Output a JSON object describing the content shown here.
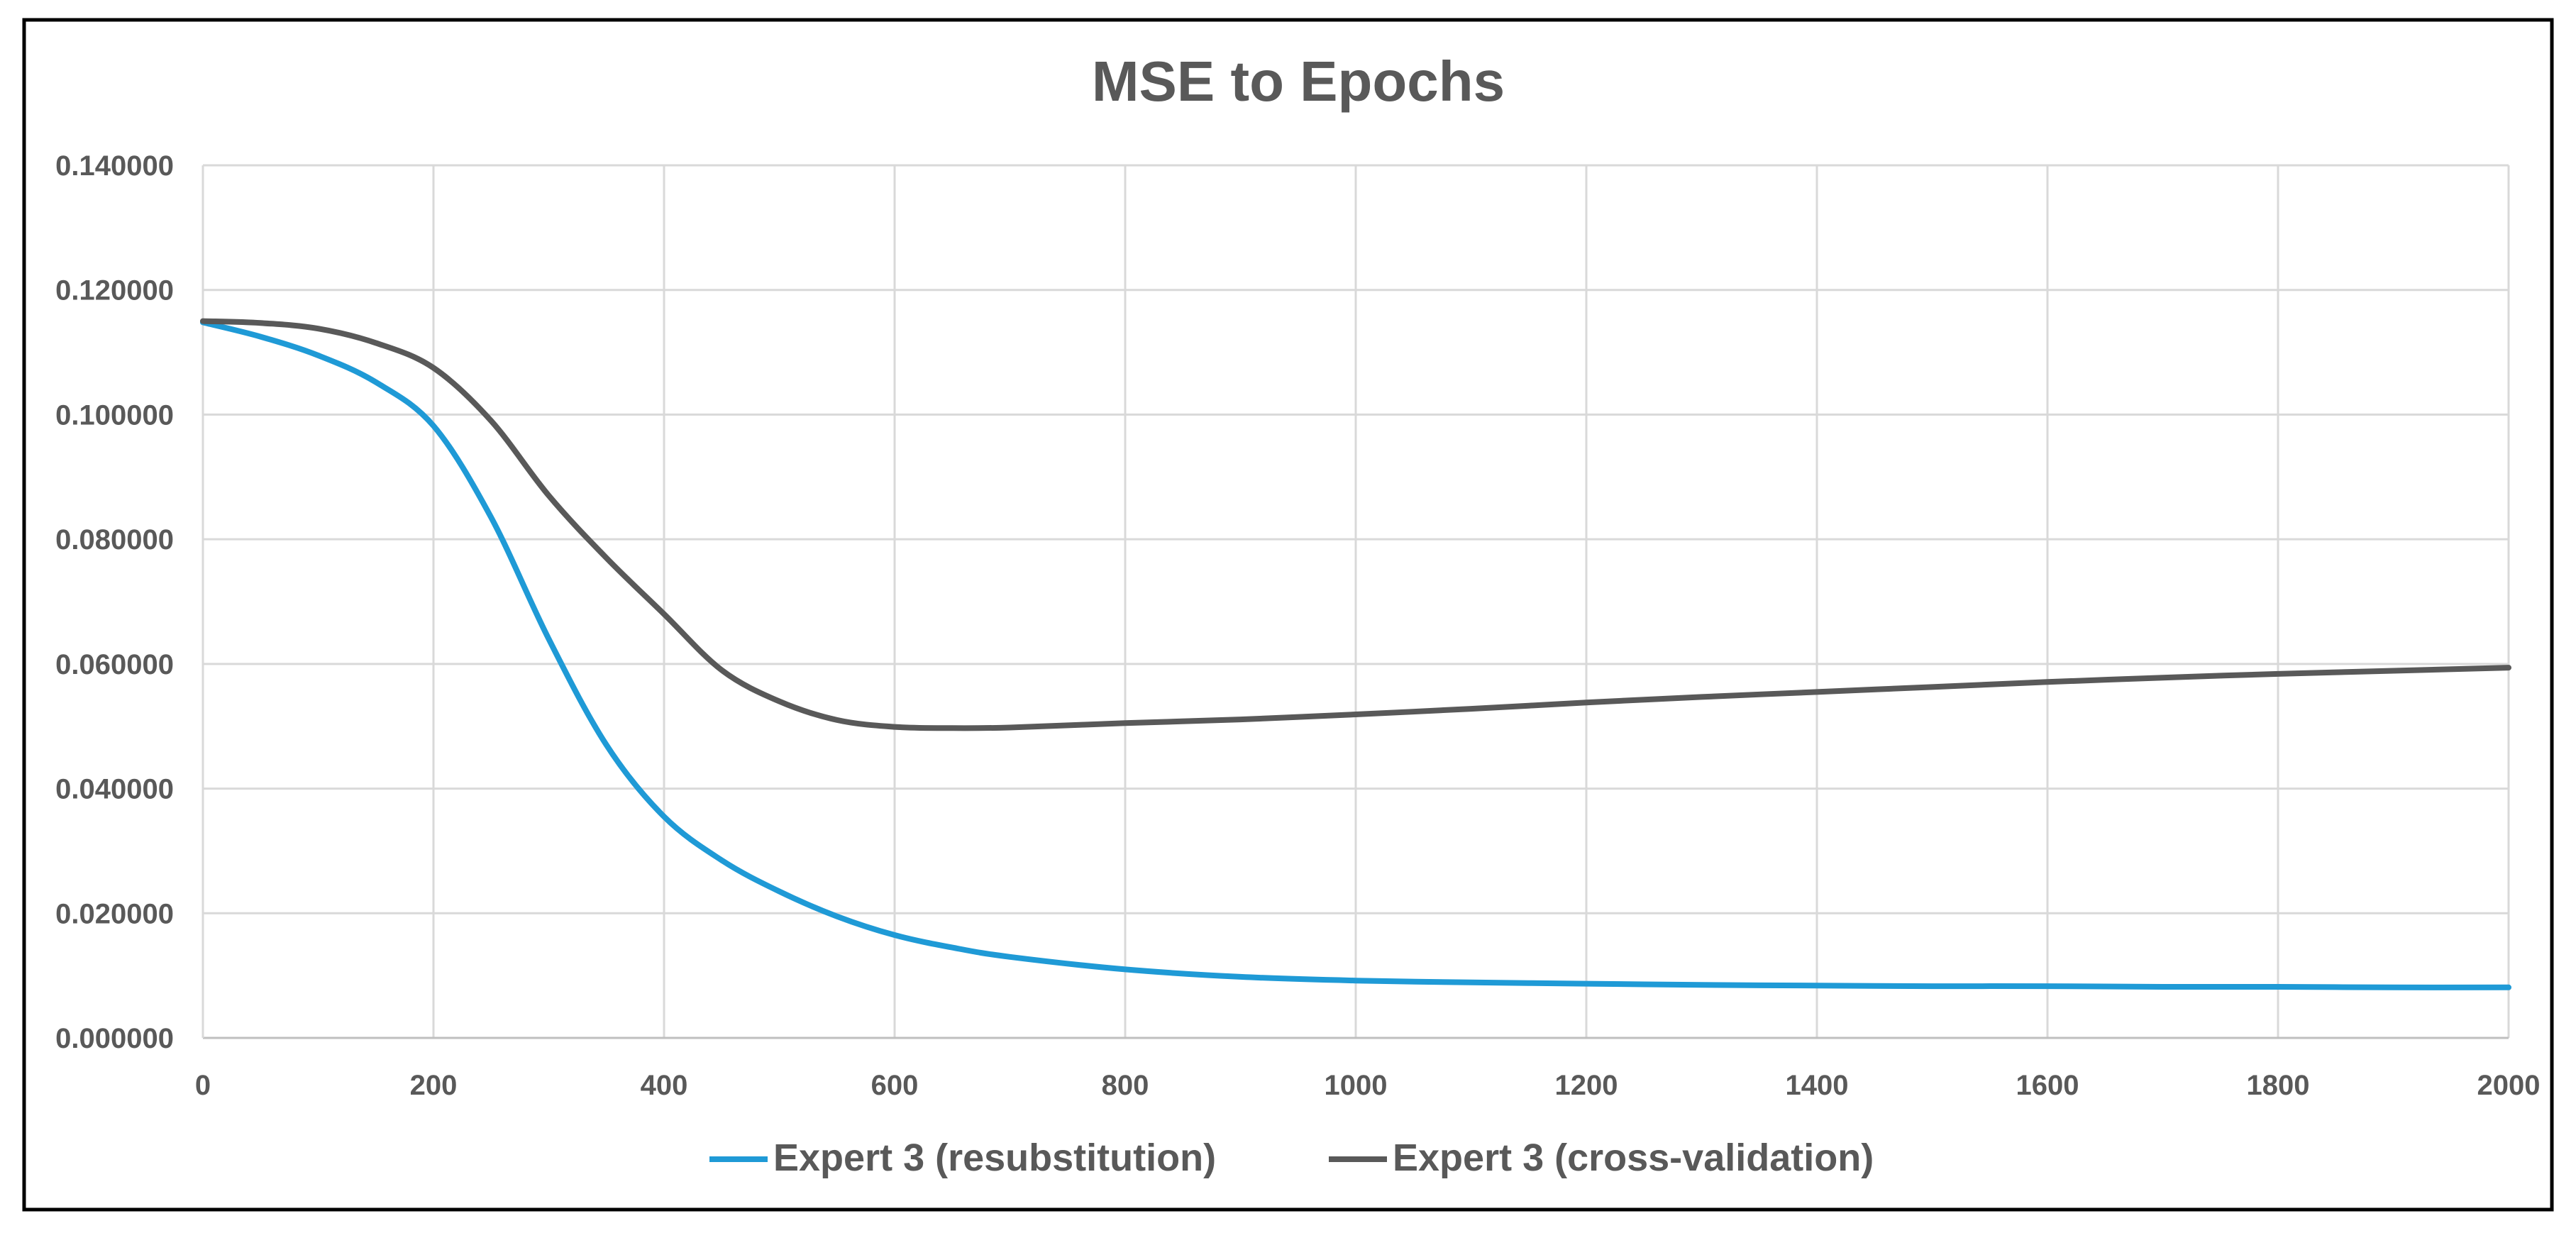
{
  "chart_data": {
    "type": "line",
    "title": "MSE to Epochs",
    "xlabel": "",
    "ylabel": "",
    "xlim": [
      0,
      2000
    ],
    "ylim": [
      0,
      0.14
    ],
    "x_ticks": [
      0,
      200,
      400,
      600,
      800,
      1000,
      1200,
      1400,
      1600,
      1800,
      2000
    ],
    "x_tick_labels": [
      "0",
      "200",
      "400",
      "600",
      "800",
      "1000",
      "1200",
      "1400",
      "1600",
      "1800",
      "2000"
    ],
    "y_ticks": [
      0,
      0.02,
      0.04,
      0.06,
      0.08,
      0.1,
      0.12,
      0.14
    ],
    "y_tick_labels": [
      "0.000000",
      "0.020000",
      "0.040000",
      "0.060000",
      "0.080000",
      "0.100000",
      "0.120000",
      "0.140000"
    ],
    "grid": true,
    "legend_position": "bottom",
    "series": [
      {
        "name": "Expert 3 (resubstitution)",
        "color": "#1f9ad6",
        "x": [
          0,
          50,
          100,
          150,
          200,
          250,
          300,
          350,
          400,
          450,
          500,
          550,
          600,
          650,
          700,
          800,
          900,
          1000,
          1100,
          1200,
          1300,
          1400,
          1500,
          1600,
          1700,
          1800,
          1900,
          2000
        ],
        "y": [
          0.1148,
          0.1125,
          0.1095,
          0.1052,
          0.0982,
          0.0835,
          0.064,
          0.047,
          0.0355,
          0.0285,
          0.0235,
          0.0195,
          0.0165,
          0.0145,
          0.013,
          0.011,
          0.0098,
          0.0092,
          0.0089,
          0.0087,
          0.0085,
          0.0084,
          0.0083,
          0.0083,
          0.0082,
          0.0082,
          0.0081,
          0.0081
        ]
      },
      {
        "name": "Expert 3 (cross-validation)",
        "color": "#595959",
        "x": [
          0,
          50,
          100,
          150,
          200,
          250,
          300,
          350,
          400,
          450,
          500,
          550,
          600,
          650,
          700,
          800,
          900,
          1000,
          1100,
          1200,
          1300,
          1400,
          1500,
          1600,
          1700,
          1800,
          1900,
          2000
        ],
        "y": [
          0.115,
          0.1147,
          0.1138,
          0.1115,
          0.1075,
          0.099,
          0.087,
          0.077,
          0.068,
          0.059,
          0.054,
          0.051,
          0.0499,
          0.0497,
          0.0498,
          0.0505,
          0.0511,
          0.0519,
          0.0528,
          0.0538,
          0.0547,
          0.0555,
          0.0563,
          0.0571,
          0.0578,
          0.0584,
          0.0589,
          0.0594
        ]
      }
    ]
  }
}
